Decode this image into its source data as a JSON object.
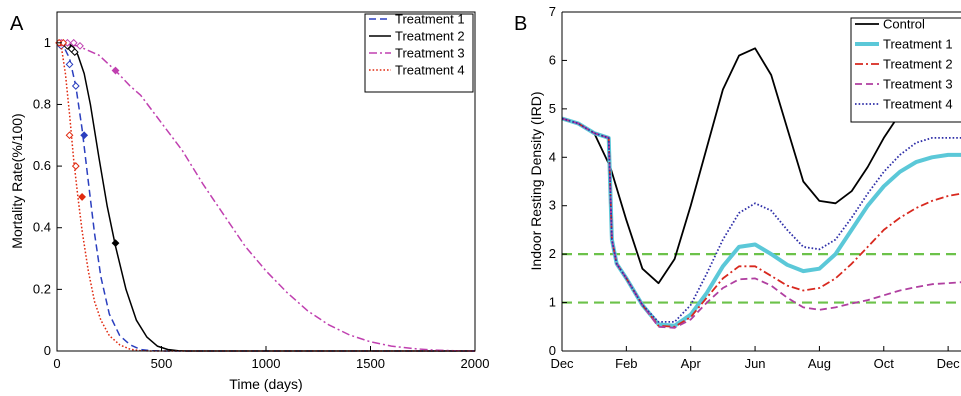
{
  "chart_data": [
    {
      "panel": "A",
      "type": "line",
      "xlabel": "Time (days)",
      "ylabel": "Mortality Rate(%/100)",
      "xlim": [
        0,
        2000
      ],
      "ylim": [
        0,
        1.1
      ],
      "xticks": [
        0,
        500,
        1000,
        1500,
        2000
      ],
      "yticks": [
        0,
        0.2,
        0.4,
        0.6,
        0.8,
        1
      ],
      "xtick_labels": [
        "0",
        "500",
        "1000",
        "1500",
        "2000"
      ],
      "ytick_labels": [
        "0",
        "0.2",
        "0.4",
        "0.6",
        "0.8",
        "1"
      ],
      "legend_position": "top-right",
      "grid": false,
      "series": [
        {
          "name": "Treatment 1",
          "color": "#2b3fbf",
          "dash": "dashed",
          "x": [
            0,
            30,
            60,
            90,
            120,
            150,
            180,
            210,
            250,
            300,
            350,
            400,
            450,
            500,
            2000
          ],
          "y": [
            1.0,
            0.99,
            0.95,
            0.86,
            0.72,
            0.55,
            0.38,
            0.24,
            0.12,
            0.05,
            0.02,
            0.005,
            0.001,
            0,
            0
          ],
          "markers": [
            [
              20,
              0.99
            ],
            [
              60,
              0.93
            ],
            [
              90,
              0.86
            ],
            [
              130,
              0.7
            ]
          ]
        },
        {
          "name": "Treatment 2",
          "color": "#000000",
          "dash": "solid",
          "x": [
            0,
            50,
            80,
            100,
            130,
            160,
            200,
            240,
            280,
            330,
            380,
            430,
            480,
            530,
            580,
            620,
            2000
          ],
          "y": [
            1.0,
            1.0,
            0.985,
            0.96,
            0.9,
            0.8,
            0.63,
            0.47,
            0.34,
            0.2,
            0.1,
            0.045,
            0.016,
            0.005,
            0.001,
            0,
            0
          ],
          "markers": [
            [
              50,
              0.99
            ],
            [
              70,
              0.98
            ],
            [
              85,
              0.97
            ],
            [
              280,
              0.35
            ]
          ]
        },
        {
          "name": "Treatment 3",
          "color": "#c040b0",
          "dash": "dashdot",
          "x": [
            0,
            100,
            200,
            280,
            350,
            400,
            500,
            600,
            700,
            800,
            900,
            1000,
            1100,
            1200,
            1300,
            1400,
            1500,
            1600,
            1700,
            1800,
            1900,
            2000
          ],
          "y": [
            1.0,
            0.99,
            0.96,
            0.91,
            0.86,
            0.83,
            0.74,
            0.65,
            0.54,
            0.44,
            0.34,
            0.26,
            0.19,
            0.13,
            0.085,
            0.052,
            0.03,
            0.016,
            0.008,
            0.003,
            0.001,
            0
          ],
          "markers": [
            [
              20,
              1.0
            ],
            [
              50,
              1.0
            ],
            [
              80,
              1.0
            ],
            [
              110,
              0.99
            ],
            [
              280,
              0.91
            ]
          ]
        },
        {
          "name": "Treatment 4",
          "color": "#e02a10",
          "dash": "dotted",
          "x": [
            0,
            20,
            40,
            60,
            80,
            100,
            120,
            150,
            180,
            210,
            250,
            300,
            350,
            400,
            450,
            2000
          ],
          "y": [
            1.0,
            0.99,
            0.9,
            0.77,
            0.62,
            0.5,
            0.39,
            0.26,
            0.16,
            0.1,
            0.05,
            0.02,
            0.006,
            0.001,
            0,
            0
          ],
          "markers": [
            [
              10,
              1.0
            ],
            [
              30,
              1.0
            ],
            [
              60,
              0.7
            ],
            [
              90,
              0.6
            ],
            [
              120,
              0.5
            ]
          ]
        }
      ]
    },
    {
      "panel": "B",
      "type": "line",
      "xlabel": "",
      "ylabel": "Indoor Resting Density (IRD)",
      "xlim": [
        0,
        12.4
      ],
      "ylim": [
        0,
        7
      ],
      "xticks": [
        0,
        2,
        4,
        6,
        8,
        10,
        12
      ],
      "xtick_labels": [
        "Dec",
        "Feb",
        "Apr",
        "Jun",
        "Aug",
        "Oct",
        "Dec"
      ],
      "yticks": [
        0,
        1,
        2,
        3,
        4,
        5,
        6,
        7
      ],
      "ytick_labels": [
        "0",
        "1",
        "2",
        "3",
        "4",
        "5",
        "6",
        "7"
      ],
      "legend_position": "top-right",
      "grid": false,
      "reference_lines": [
        {
          "y": 2,
          "color": "#6cc24a",
          "dash": "dashed"
        },
        {
          "y": 1,
          "color": "#6cc24a",
          "dash": "dashed"
        }
      ],
      "series": [
        {
          "name": "Control",
          "color": "#000000",
          "dash": "solid",
          "x": [
            0,
            0.5,
            1,
            1.5,
            2,
            2.5,
            3,
            3.5,
            4,
            4.5,
            5,
            5.5,
            6,
            6.5,
            7,
            7.5,
            8,
            8.5,
            9,
            9.5,
            10,
            10.5,
            11,
            11.5,
            12,
            12.4
          ],
          "y": [
            4.8,
            4.7,
            4.5,
            3.8,
            2.7,
            1.7,
            1.4,
            1.9,
            3.0,
            4.2,
            5.4,
            6.1,
            6.25,
            5.7,
            4.6,
            3.5,
            3.1,
            3.05,
            3.3,
            3.8,
            4.4,
            4.9,
            5.1,
            5.15,
            5.2,
            5.2
          ]
        },
        {
          "name": "Treatment 1",
          "color": "#5bc8d8",
          "dash": "solid",
          "x": [
            0,
            0.5,
            1,
            1.45,
            1.55,
            1.7,
            2,
            2.5,
            3,
            3.5,
            4,
            4.5,
            5,
            5.5,
            6,
            6.5,
            7,
            7.5,
            8,
            8.5,
            9,
            9.5,
            10,
            10.5,
            11,
            11.5,
            12,
            12.4
          ],
          "y": [
            4.8,
            4.7,
            4.5,
            4.4,
            2.3,
            1.8,
            1.5,
            0.95,
            0.55,
            0.52,
            0.75,
            1.2,
            1.75,
            2.15,
            2.2,
            2.0,
            1.78,
            1.65,
            1.7,
            2.0,
            2.5,
            3.0,
            3.4,
            3.7,
            3.9,
            4.0,
            4.05,
            4.05
          ]
        },
        {
          "name": "Treatment 2",
          "color": "#d8281e",
          "dash": "dashdot",
          "x": [
            0,
            0.5,
            1,
            1.45,
            1.55,
            1.7,
            2,
            2.5,
            3,
            3.5,
            4,
            4.5,
            5,
            5.5,
            6,
            6.5,
            7,
            7.5,
            8,
            8.5,
            9,
            9.5,
            10,
            10.5,
            11,
            11.5,
            12,
            12.4
          ],
          "y": [
            4.8,
            4.7,
            4.5,
            4.4,
            2.3,
            1.8,
            1.5,
            0.95,
            0.52,
            0.5,
            0.7,
            1.1,
            1.5,
            1.75,
            1.75,
            1.55,
            1.35,
            1.25,
            1.3,
            1.5,
            1.8,
            2.15,
            2.5,
            2.75,
            2.95,
            3.1,
            3.2,
            3.25
          ]
        },
        {
          "name": "Treatment 3",
          "color": "#b03fa0",
          "dash": "dashed",
          "x": [
            0,
            0.5,
            1,
            1.45,
            1.55,
            1.7,
            2,
            2.5,
            3,
            3.5,
            4,
            4.5,
            5,
            5.5,
            6,
            6.5,
            7,
            7.5,
            8,
            8.5,
            9,
            9.5,
            10,
            10.5,
            11,
            11.5,
            12,
            12.4
          ],
          "y": [
            4.8,
            4.7,
            4.5,
            4.4,
            2.3,
            1.8,
            1.5,
            0.95,
            0.5,
            0.48,
            0.65,
            1.0,
            1.3,
            1.48,
            1.5,
            1.35,
            1.1,
            0.9,
            0.85,
            0.9,
            0.98,
            1.05,
            1.15,
            1.25,
            1.32,
            1.38,
            1.4,
            1.42
          ]
        },
        {
          "name": "Treatment 4",
          "color": "#2f2fa8",
          "dash": "dotted",
          "x": [
            0,
            0.5,
            1,
            1.45,
            1.55,
            1.7,
            2,
            2.5,
            3,
            3.5,
            4,
            4.5,
            5,
            5.5,
            6,
            6.5,
            7,
            7.5,
            8,
            8.5,
            9,
            9.5,
            10,
            10.5,
            11,
            11.5,
            12,
            12.4
          ],
          "y": [
            4.8,
            4.7,
            4.5,
            4.4,
            2.3,
            1.8,
            1.5,
            0.95,
            0.6,
            0.6,
            0.95,
            1.6,
            2.3,
            2.85,
            3.05,
            2.9,
            2.5,
            2.15,
            2.1,
            2.3,
            2.75,
            3.25,
            3.7,
            4.05,
            4.3,
            4.4,
            4.4,
            4.4
          ]
        }
      ]
    }
  ]
}
